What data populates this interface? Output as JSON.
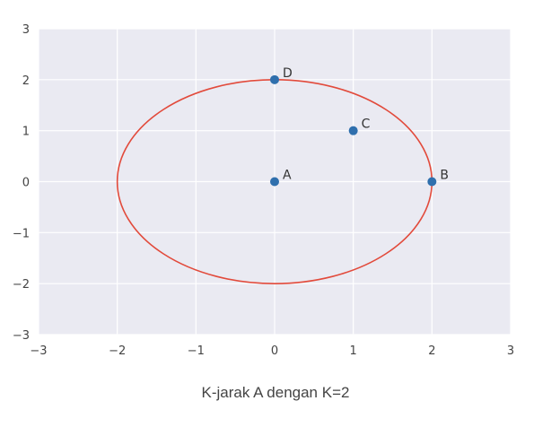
{
  "caption": "K-jarak A dengan K=2",
  "chart_data": {
    "type": "scatter",
    "xlim": [
      -3,
      3
    ],
    "ylim": [
      -3,
      3
    ],
    "xticks": [
      -3,
      -2,
      -1,
      0,
      1,
      2,
      3
    ],
    "yticks": [
      -3,
      -2,
      -1,
      0,
      1,
      2,
      3
    ],
    "xtick_labels": [
      "−3",
      "−2",
      "−1",
      "0",
      "1",
      "2",
      "3"
    ],
    "ytick_labels": [
      "−3",
      "−2",
      "−1",
      "0",
      "1",
      "2",
      "3"
    ],
    "grid": true,
    "points": [
      {
        "label": "A",
        "x": 0,
        "y": 0
      },
      {
        "label": "B",
        "x": 2,
        "y": 0
      },
      {
        "label": "C",
        "x": 1,
        "y": 1
      },
      {
        "label": "D",
        "x": 0,
        "y": 2
      }
    ],
    "circle": {
      "center": [
        0,
        0
      ],
      "radius": 2,
      "color": "#e24a3b"
    },
    "colors": {
      "point": "#2f6fad",
      "background": "#eaeaf2",
      "grid": "#ffffff"
    }
  }
}
